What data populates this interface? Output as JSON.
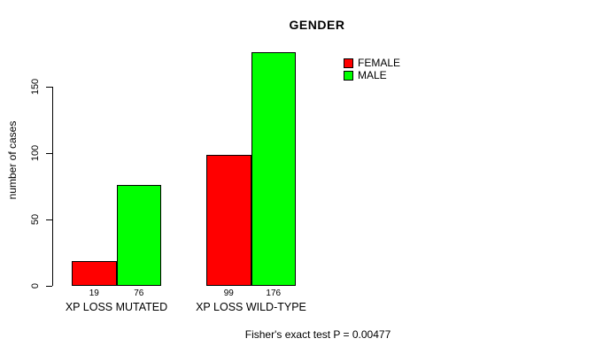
{
  "chart_data": {
    "type": "bar",
    "title": "GENDER",
    "ylabel": "number of cases",
    "footnote": "Fisher's exact test P = 0.00477",
    "categories": [
      "XP LOSS MUTATED",
      "XP LOSS WILD-TYPE"
    ],
    "series": [
      {
        "name": "FEMALE",
        "color": "#ff0000",
        "values": [
          19,
          99
        ]
      },
      {
        "name": "MALE",
        "color": "#00ff00",
        "values": [
          76,
          176
        ]
      }
    ],
    "bar_value_labels": [
      [
        "19",
        "99"
      ],
      [
        "76",
        "176"
      ]
    ],
    "yticks": [
      "0",
      "50",
      "100",
      "150"
    ],
    "ytick_values": [
      0,
      50,
      100,
      150
    ],
    "ylim": [
      0,
      176
    ],
    "grid": false,
    "legend_position": "top-right",
    "bar_border_color": "#000000",
    "axis_color": "#000000",
    "background_color": "#ffffff"
  }
}
